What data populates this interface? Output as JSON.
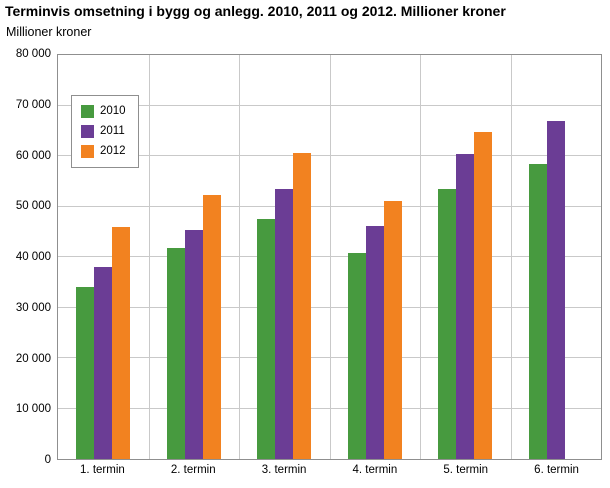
{
  "chart_data": {
    "type": "bar",
    "title": "Terminvis omsetning i bygg og anlegg. 2010, 2011 og 2012. Millioner kroner",
    "ylabel": "Millioner kroner",
    "categories": [
      "1. termin",
      "2. termin",
      "3. termin",
      "4. termin",
      "5. termin",
      "6. termin"
    ],
    "series": [
      {
        "name": "2010",
        "color": "#479a3f",
        "values": [
          34000,
          41800,
          47500,
          40800,
          53500,
          58500
        ]
      },
      {
        "name": "2011",
        "color": "#6b3d95",
        "values": [
          38000,
          45300,
          53400,
          46200,
          60400,
          67000
        ]
      },
      {
        "name": "2012",
        "color": "#f28220",
        "values": [
          45900,
          52200,
          60500,
          51100,
          64700,
          null
        ]
      }
    ],
    "ylim": [
      0,
      80000
    ],
    "ytick_step": 10000,
    "grid": true,
    "legend_position": "top-left",
    "colors": {
      "grid": "#c9c9c9",
      "plot_border": "#8f8f8f",
      "background": "#ffffff"
    }
  }
}
